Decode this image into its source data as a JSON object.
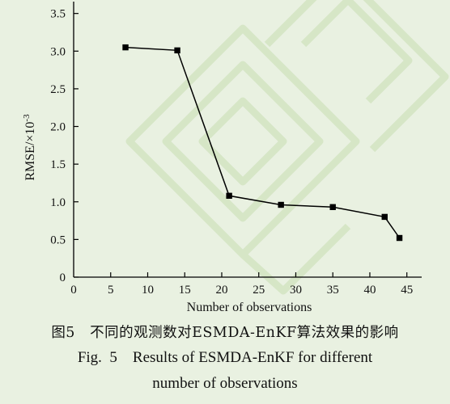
{
  "colors": {
    "background": "#e9f1e1",
    "line": "#000000",
    "watermark": "#d4e4c4"
  },
  "chart_data": {
    "type": "line",
    "x": [
      7,
      14,
      21,
      28,
      35,
      42,
      44
    ],
    "series": [
      {
        "values": [
          3.05,
          3.01,
          1.08,
          0.96,
          0.93,
          0.8,
          0.52
        ]
      }
    ],
    "xlabel": "Number of observations",
    "ylabel": "RMSE/×10",
    "ylabel_sup": "-3",
    "xlim": [
      0,
      47
    ],
    "ylim": [
      0,
      3.55
    ],
    "xticks": [
      5,
      10,
      15,
      20,
      25,
      30,
      35,
      40,
      45
    ],
    "xtick_labels": [
      "5",
      "10",
      "15",
      "20",
      "25",
      "30",
      "35",
      "40",
      "45"
    ],
    "yticks": [
      0,
      0.5,
      1.0,
      1.5,
      2.0,
      2.5,
      3.0,
      3.5
    ],
    "ytick_labels": [
      "0",
      "0.5",
      "1.0",
      "1.5",
      "2.0",
      "2.5",
      "3.0",
      "3.5"
    ],
    "grid": false,
    "marker": "square"
  },
  "caption": {
    "cn": "图5   不同的观测数对ESMDA-EnKF算法效果的影响",
    "en_line1": "Fig.  5    Results of ESMDA-EnKF for different",
    "en_line2": "number of observations"
  }
}
